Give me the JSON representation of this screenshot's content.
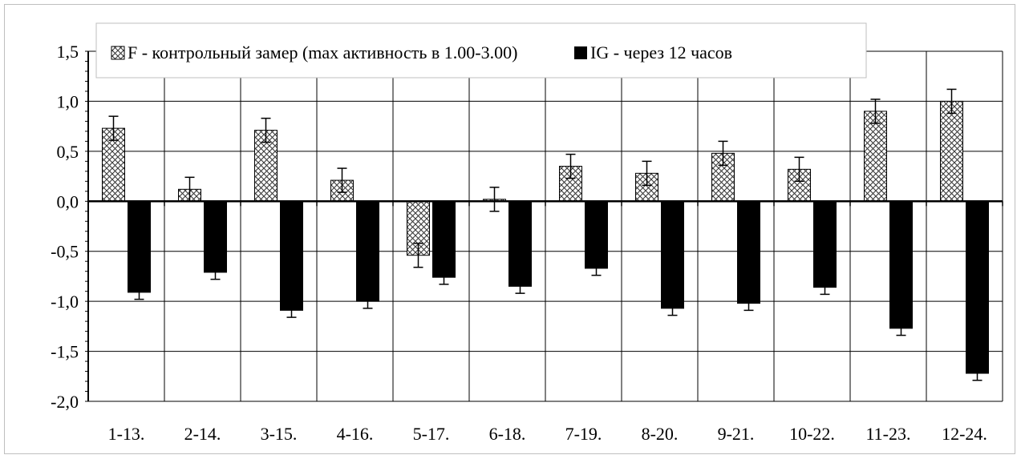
{
  "chart_data": {
    "type": "bar",
    "categories": [
      "1-13.",
      "2-14.",
      "3-15.",
      "4-16.",
      "5-17.",
      "6-18.",
      "7-19.",
      "8-20.",
      "9-21.",
      "10-22.",
      "11-23.",
      "12-24."
    ],
    "series": [
      {
        "name": "F - контрольный замер (max активность в 1.00-3.00)",
        "pattern": "crosshatch",
        "color": "#ffffff",
        "values": [
          0.73,
          0.12,
          0.71,
          0.21,
          -0.54,
          0.02,
          0.35,
          0.28,
          0.48,
          0.32,
          0.9,
          1.0
        ],
        "errors": [
          0.12,
          0.12,
          0.12,
          0.12,
          0.12,
          0.12,
          0.12,
          0.12,
          0.12,
          0.12,
          0.12,
          0.12
        ]
      },
      {
        "name": "IG - через 12 часов",
        "pattern": "solid",
        "color": "#000000",
        "values": [
          -0.91,
          -0.71,
          -1.09,
          -1.0,
          -0.76,
          -0.85,
          -0.67,
          -1.07,
          -1.02,
          -0.86,
          -1.27,
          -1.72
        ],
        "errors": [
          0.07,
          0.07,
          0.07,
          0.07,
          0.07,
          0.07,
          0.07,
          0.07,
          0.07,
          0.07,
          0.07,
          0.07
        ]
      }
    ],
    "y_ticks": [
      "1,5",
      "1,0",
      "0,5",
      "0,0",
      "-0,5",
      "-1,0",
      "-1,5",
      "-2,0"
    ],
    "y_tick_values": [
      1.5,
      1.0,
      0.5,
      0.0,
      -0.5,
      -1.0,
      -1.5,
      -2.0
    ],
    "ylim": [
      -2.0,
      1.5
    ],
    "title": "",
    "xlabel": "",
    "ylabel": "",
    "grid": true,
    "legend_position": "top"
  }
}
